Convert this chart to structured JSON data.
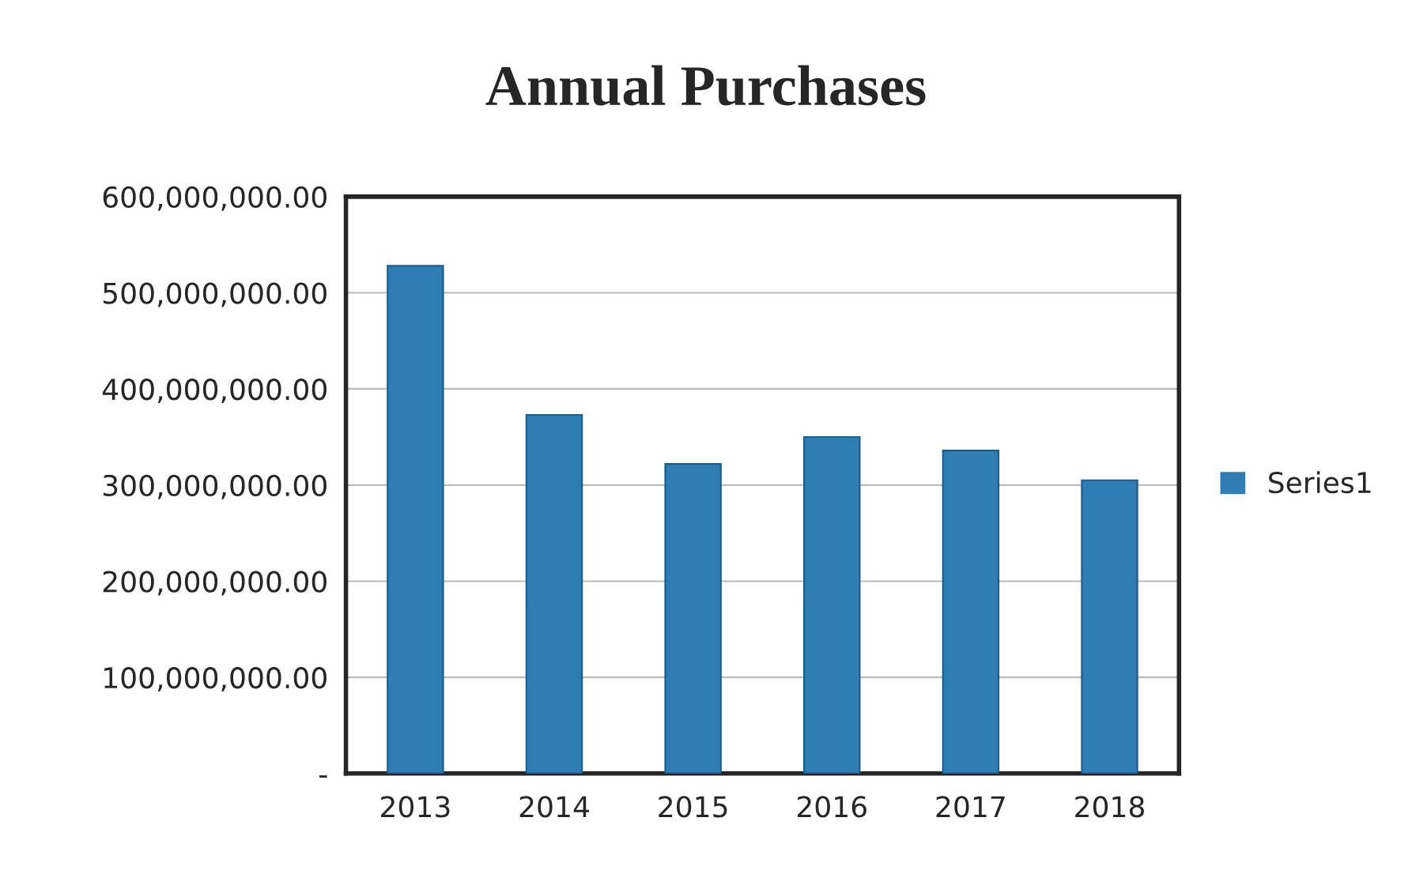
{
  "chart_data": {
    "type": "bar",
    "title": "Annual Purchases",
    "categories": [
      "2013",
      "2014",
      "2015",
      "2016",
      "2017",
      "2018"
    ],
    "series": [
      {
        "name": "Series1",
        "color": "#2f7db3",
        "values": [
          528000000,
          373000000,
          322000000,
          350000000,
          336000000,
          305000000
        ]
      }
    ],
    "ylim": [
      0,
      600000000
    ],
    "yticks": [
      {
        "value": 0,
        "label": "-"
      },
      {
        "value": 100000000,
        "label": "100,000,000.00"
      },
      {
        "value": 200000000,
        "label": "200,000,000.00"
      },
      {
        "value": 300000000,
        "label": "300,000,000.00"
      },
      {
        "value": 400000000,
        "label": "400,000,000.00"
      },
      {
        "value": 500000000,
        "label": "500,000,000.00"
      },
      {
        "value": 600000000,
        "label": "600,000,000.00"
      }
    ],
    "grid": "y",
    "legend": "right"
  }
}
